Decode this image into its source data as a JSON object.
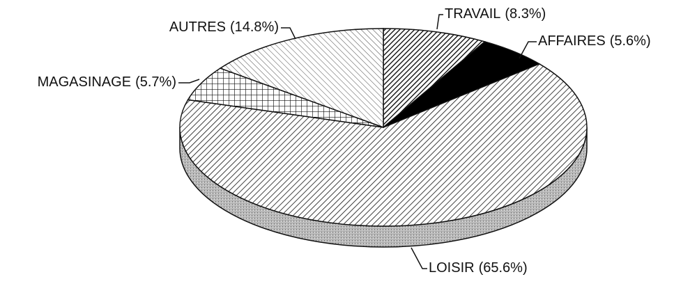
{
  "chart_data": {
    "type": "pie",
    "categories": [
      "TRAVAIL",
      "AFFAIRES",
      "LOISIR",
      "MAGASINAGE",
      "AUTRES"
    ],
    "values": [
      8.3,
      5.6,
      65.6,
      5.7,
      14.8
    ],
    "value_labels": [
      "(8.3%)",
      "(5.6%)",
      "(65.6%)",
      "(5.7%)",
      "(14.8%)"
    ]
  }
}
